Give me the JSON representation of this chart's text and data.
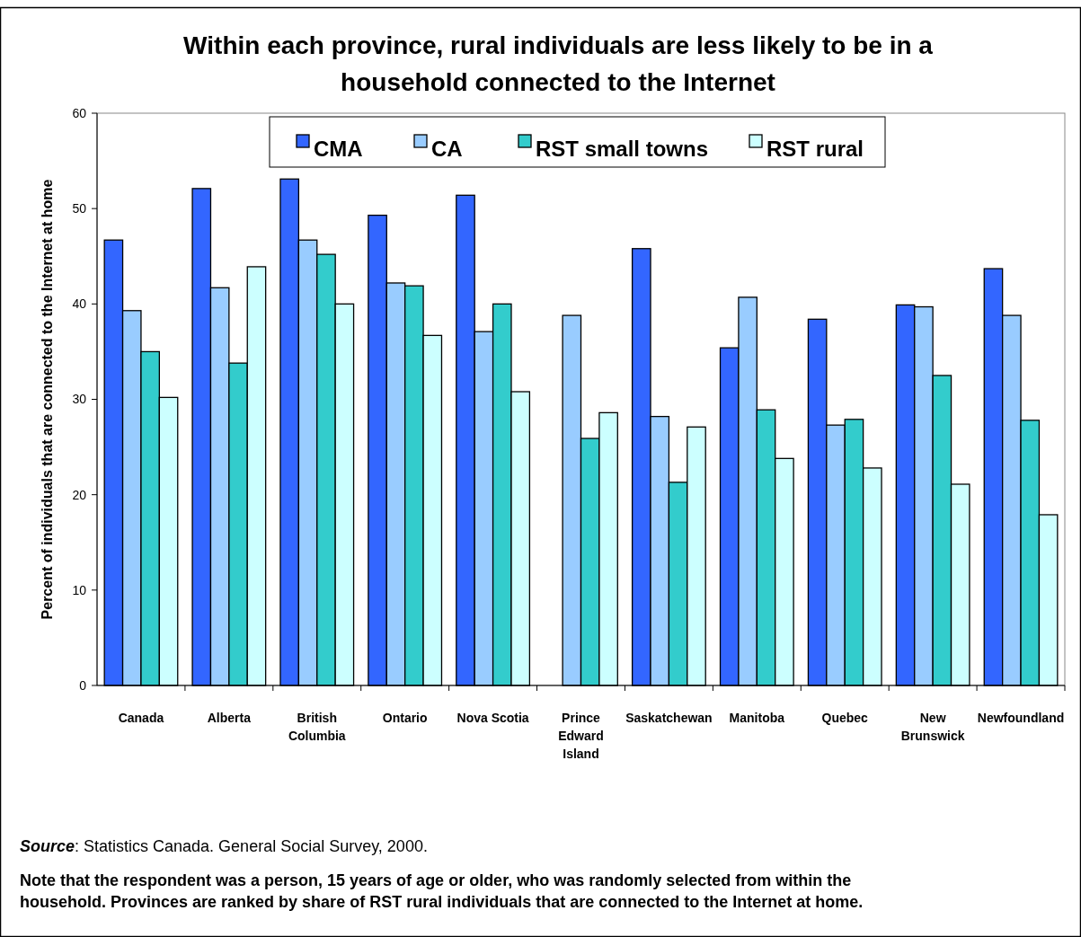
{
  "chart_data": {
    "type": "bar",
    "title": "Within each province, rural individuals are less likely to be in a household connected to the Internet",
    "ylabel": "Percent of individuals that are connected to the Internet at home",
    "categories": [
      "Canada",
      "Alberta",
      "British Columbia",
      "Ontario",
      "Nova Scotia",
      "Prince Edward Island",
      "Saskatchewan",
      "Manitoba",
      "Quebec",
      "New Brunswick",
      "Newfoundland"
    ],
    "series": [
      {
        "name": "CMA",
        "color": "#3366ff",
        "values": [
          46.7,
          52.1,
          53.1,
          49.3,
          51.4,
          null,
          45.8,
          35.4,
          38.4,
          39.9,
          43.7
        ]
      },
      {
        "name": "CA",
        "color": "#99ccff",
        "values": [
          39.3,
          41.7,
          46.7,
          42.2,
          37.1,
          38.8,
          28.2,
          40.7,
          27.3,
          39.7,
          38.8
        ]
      },
      {
        "name": "RST small towns",
        "color": "#33cccc",
        "values": [
          35.0,
          33.8,
          45.2,
          41.9,
          40.0,
          25.9,
          21.3,
          28.9,
          27.9,
          32.5,
          27.8
        ]
      },
      {
        "name": "RST rural",
        "color": "#ccffff",
        "values": [
          30.2,
          43.9,
          40.0,
          36.7,
          30.8,
          28.6,
          27.1,
          23.8,
          22.8,
          21.1,
          17.9
        ]
      }
    ],
    "ylim": [
      0,
      60
    ],
    "yticks": [
      0,
      10,
      20,
      30,
      40,
      50,
      60
    ],
    "grid": false,
    "legend": "top",
    "annotations": [
      "Source: Statistics Canada.  General Social Survey, 2000.",
      "Note that the respondent was a person, 15 years of age or older, who was randomly selected from within the household. Provinces are ranked by share of RST rural individuals that are connected to the Internet at home."
    ]
  }
}
